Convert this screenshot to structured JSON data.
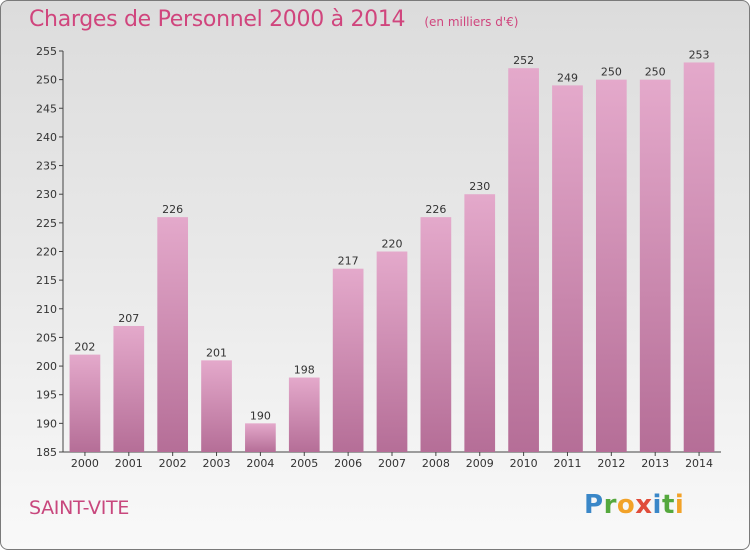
{
  "header": {
    "title": "Charges de Personnel 2000 à 2014",
    "unit": "(en milliers d'€)"
  },
  "footer": {
    "city": "SAINT-VITE",
    "logo": [
      "P",
      "r",
      "o",
      "x",
      "i",
      "t",
      "i"
    ]
  },
  "colors": {
    "bar_top": "#e4a9cb",
    "bar_bottom": "#b56e97",
    "title": "#d0457d",
    "axis": "#333333"
  },
  "chart_data": {
    "type": "bar",
    "title": "Charges de Personnel 2000 à 2014",
    "subtitle": "(en milliers d'€)",
    "categories": [
      "2000",
      "2001",
      "2002",
      "2003",
      "2004",
      "2005",
      "2006",
      "2007",
      "2008",
      "2009",
      "2010",
      "2011",
      "2012",
      "2013",
      "2014"
    ],
    "values": [
      202,
      207,
      226,
      201,
      190,
      198,
      217,
      220,
      226,
      230,
      252,
      249,
      250,
      250,
      253
    ],
    "ylim": [
      185,
      255
    ],
    "yticks": [
      185,
      190,
      195,
      200,
      205,
      210,
      215,
      220,
      225,
      230,
      235,
      240,
      245,
      250,
      255
    ],
    "grid": false,
    "legend": "none"
  }
}
